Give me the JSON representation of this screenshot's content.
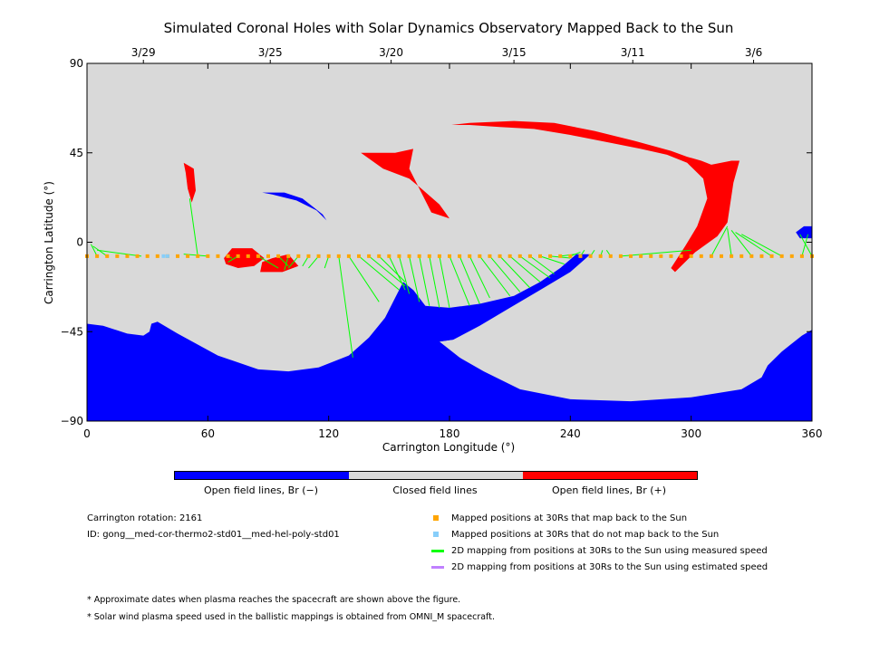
{
  "chart_data": {
    "type": "map",
    "title": "Simulated Coronal Holes with Solar Dynamics Observatory Mapped Back to the Sun",
    "xlabel": "Carrington Longitude (°)",
    "ylabel": "Carrington Latitude (°)",
    "xlim": [
      0,
      360
    ],
    "ylim": [
      -90,
      90
    ],
    "x_ticks": [
      0,
      60,
      120,
      180,
      240,
      300,
      360
    ],
    "y_ticks": [
      -90,
      -45,
      0,
      45,
      90
    ],
    "top_axis_dates": [
      {
        "label": "3/29",
        "lon": 28
      },
      {
        "label": "3/25",
        "lon": 91
      },
      {
        "label": "3/20",
        "lon": 151
      },
      {
        "label": "3/15",
        "lon": 212
      },
      {
        "label": "3/11",
        "lon": 271
      },
      {
        "label": "3/6",
        "lon": 331
      }
    ],
    "colors": {
      "open_neg": "#0000ff",
      "closed": "#d9d9d9",
      "open_pos": "#ff0000",
      "mapped": "#ffa500",
      "unmapped": "#87cefa",
      "measured": "#00ff00",
      "estimated": "#c080ff"
    },
    "colorbar": [
      {
        "label": "Open field lines, Br (−)",
        "color": "#0000ff"
      },
      {
        "label": "Closed field lines",
        "color": "#d9d9d9"
      },
      {
        "label": "Open field lines, Br (+)",
        "color": "#ff0000"
      }
    ],
    "regions": {
      "south_polar_hole": {
        "polarity": "negative",
        "outline": [
          [
            0,
            -90
          ],
          [
            360,
            -90
          ],
          [
            360,
            -44
          ],
          [
            355,
            -47
          ],
          [
            345,
            -55
          ],
          [
            338,
            -62
          ],
          [
            335,
            -68
          ],
          [
            325,
            -74
          ],
          [
            300,
            -78
          ],
          [
            270,
            -80
          ],
          [
            240,
            -79
          ],
          [
            215,
            -74
          ],
          [
            197,
            -65
          ],
          [
            185,
            -58
          ],
          [
            175,
            -50
          ],
          [
            182,
            -49
          ],
          [
            195,
            -42
          ],
          [
            210,
            -33
          ],
          [
            225,
            -24
          ],
          [
            240,
            -15
          ],
          [
            250,
            -6
          ],
          [
            243,
            -6
          ],
          [
            235,
            -13
          ],
          [
            225,
            -20
          ],
          [
            212,
            -27
          ],
          [
            195,
            -31
          ],
          [
            180,
            -33
          ],
          [
            168,
            -32
          ],
          [
            162,
            -24
          ],
          [
            157,
            -20
          ],
          [
            152,
            -30
          ],
          [
            148,
            -38
          ],
          [
            140,
            -48
          ],
          [
            130,
            -57
          ],
          [
            115,
            -63
          ],
          [
            100,
            -65
          ],
          [
            85,
            -64
          ],
          [
            65,
            -57
          ],
          [
            45,
            -46
          ],
          [
            35,
            -40
          ],
          [
            32,
            -41
          ],
          [
            31,
            -45
          ],
          [
            28,
            -47
          ],
          [
            20,
            -46
          ],
          [
            8,
            -42
          ],
          [
            0,
            -41
          ]
        ]
      },
      "southern_channel": {
        "polarity": "negative",
        "outline": [
          [
            175,
            -50
          ],
          [
            165,
            -47
          ],
          [
            160,
            -40
          ],
          [
            158,
            -32
          ],
          [
            159,
            -24
          ],
          [
            162,
            -24
          ],
          [
            168,
            -32
          ],
          [
            178,
            -38
          ],
          [
            182,
            -49
          ]
        ]
      },
      "north_extension": {
        "polarity": "positive",
        "outline": [
          [
            181,
            59
          ],
          [
            190,
            60
          ],
          [
            212,
            61
          ],
          [
            232,
            60
          ],
          [
            252,
            56
          ],
          [
            272,
            51
          ],
          [
            290,
            46
          ],
          [
            298,
            43
          ],
          [
            305,
            41
          ],
          [
            310,
            39
          ],
          [
            320,
            41
          ],
          [
            324,
            41
          ],
          [
            321,
            30
          ],
          [
            318,
            10
          ],
          [
            313,
            3
          ],
          [
            302,
            -5
          ],
          [
            292,
            -15
          ],
          [
            290,
            -13
          ],
          [
            297,
            -2
          ],
          [
            303,
            8
          ],
          [
            308,
            22
          ],
          [
            306,
            32
          ],
          [
            298,
            40
          ],
          [
            288,
            44
          ],
          [
            275,
            47
          ],
          [
            260,
            50
          ],
          [
            240,
            54
          ],
          [
            222,
            57
          ],
          [
            205,
            58
          ],
          [
            190,
            59
          ]
        ]
      },
      "diagonal_patch": {
        "polarity": "positive",
        "outline": [
          [
            136,
            45
          ],
          [
            153,
            45
          ],
          [
            162,
            47
          ],
          [
            160,
            37
          ],
          [
            165,
            27
          ],
          [
            171,
            15
          ],
          [
            180,
            12
          ],
          [
            175,
            19
          ],
          [
            166,
            27
          ],
          [
            160,
            32
          ],
          [
            147,
            37
          ]
        ]
      },
      "small_north_patch": {
        "polarity": "positive",
        "outline": [
          [
            48,
            40
          ],
          [
            53,
            37
          ],
          [
            54,
            26
          ],
          [
            52,
            20
          ],
          [
            50,
            27
          ],
          [
            49,
            35
          ]
        ]
      },
      "low_patch_1": {
        "polarity": "positive",
        "outline": [
          [
            68,
            -8
          ],
          [
            72,
            -3
          ],
          [
            82,
            -3
          ],
          [
            88,
            -8
          ],
          [
            83,
            -12
          ],
          [
            75,
            -13
          ],
          [
            69,
            -11
          ]
        ]
      },
      "low_patch_2": {
        "polarity": "positive",
        "outline": [
          [
            86,
            -15
          ],
          [
            97,
            -15
          ],
          [
            105,
            -12
          ],
          [
            100,
            -6
          ],
          [
            92,
            -8
          ],
          [
            87,
            -10
          ]
        ]
      },
      "blue_arc": {
        "polarity": "negative",
        "outline": [
          [
            87,
            25
          ],
          [
            98,
            25
          ],
          [
            107,
            22
          ],
          [
            117,
            14
          ],
          [
            119,
            11
          ],
          [
            114,
            16
          ],
          [
            104,
            21
          ],
          [
            92,
            24
          ]
        ]
      },
      "east_blob": {
        "polarity": "negative",
        "outline": [
          [
            352,
            5
          ],
          [
            356,
            8
          ],
          [
            360,
            8
          ],
          [
            360,
            2
          ],
          [
            354,
            2
          ]
        ]
      }
    },
    "mapped_points": {
      "y": -7,
      "x": [
        0,
        5,
        10,
        15,
        20,
        25,
        30,
        35,
        40,
        45,
        50,
        55,
        60,
        65,
        70,
        75,
        80,
        85,
        90,
        95,
        100,
        105,
        110,
        115,
        120,
        125,
        130,
        135,
        140,
        145,
        150,
        155,
        160,
        165,
        170,
        175,
        180,
        185,
        190,
        195,
        200,
        205,
        210,
        215,
        220,
        225,
        230,
        235,
        240,
        245,
        250,
        255,
        260,
        265,
        270,
        275,
        280,
        285,
        290,
        295,
        300,
        305,
        310,
        315,
        320,
        325,
        330,
        335,
        340,
        345,
        350,
        355,
        360
      ]
    },
    "unmapped_points": {
      "y": -7,
      "x": [
        38,
        40
      ]
    },
    "measured_mapping_lines": [
      [
        0,
        -7,
        0,
        3
      ],
      [
        5,
        -7,
        2,
        -1
      ],
      [
        10,
        -7,
        3,
        -2
      ],
      [
        27,
        -7,
        5,
        -4
      ],
      [
        55,
        -7,
        51,
        22
      ],
      [
        60,
        -7,
        48,
        -6
      ],
      [
        70,
        -7,
        72,
        -8
      ],
      [
        75,
        -7,
        70,
        -10
      ],
      [
        85,
        -7,
        95,
        -13
      ],
      [
        95,
        -7,
        100,
        -12
      ],
      [
        100,
        -7,
        98,
        -14
      ],
      [
        105,
        -7,
        100,
        -13
      ],
      [
        110,
        -7,
        107,
        -12
      ],
      [
        115,
        -7,
        110,
        -13
      ],
      [
        120,
        -7,
        118,
        -13
      ],
      [
        125,
        -7,
        132,
        -58
      ],
      [
        130,
        -7,
        145,
        -30
      ],
      [
        135,
        -7,
        155,
        -24
      ],
      [
        140,
        -7,
        158,
        -22
      ],
      [
        145,
        -7,
        158,
        -20
      ],
      [
        150,
        -7,
        158,
        -24
      ],
      [
        155,
        -7,
        160,
        -26
      ],
      [
        160,
        -7,
        165,
        -30
      ],
      [
        165,
        -7,
        170,
        -32
      ],
      [
        170,
        -7,
        175,
        -33
      ],
      [
        175,
        -7,
        180,
        -33
      ],
      [
        180,
        -7,
        190,
        -32
      ],
      [
        185,
        -7,
        195,
        -31
      ],
      [
        190,
        -7,
        200,
        -28
      ],
      [
        195,
        -7,
        210,
        -27
      ],
      [
        200,
        -7,
        215,
        -25
      ],
      [
        205,
        -7,
        220,
        -23
      ],
      [
        210,
        -7,
        225,
        -20
      ],
      [
        215,
        -7,
        230,
        -18
      ],
      [
        220,
        -7,
        232,
        -16
      ],
      [
        225,
        -7,
        237,
        -11
      ],
      [
        230,
        -7,
        240,
        -8
      ],
      [
        235,
        -7,
        243,
        -6
      ],
      [
        240,
        -7,
        245,
        -5
      ],
      [
        245,
        -7,
        247,
        -4
      ],
      [
        250,
        -7,
        252,
        -4
      ],
      [
        255,
        -7,
        256,
        -4
      ],
      [
        260,
        -7,
        258,
        -4
      ],
      [
        265,
        -7,
        300,
        -4
      ],
      [
        310,
        -7,
        318,
        8
      ],
      [
        320,
        -7,
        318,
        7
      ],
      [
        330,
        -7,
        320,
        6
      ],
      [
        340,
        -7,
        322,
        5
      ],
      [
        345,
        -7,
        325,
        4
      ],
      [
        355,
        -7,
        358,
        4
      ],
      [
        360,
        -7,
        354,
        4
      ]
    ],
    "estimated_mapping_lines": []
  },
  "legend": [
    {
      "label": "Mapped positions at 30Rs that map back to the Sun",
      "color": "#ffa500",
      "kind": "square"
    },
    {
      "label": "Mapped positions at 30Rs that do not map back to the Sun",
      "color": "#87cefa",
      "kind": "square"
    },
    {
      "label": "2D mapping from positions at 30Rs to the Sun using measured speed",
      "color": "#00ff00",
      "kind": "line"
    },
    {
      "label": "2D mapping from positions at 30Rs to the Sun using estimated speed",
      "color": "#c080ff",
      "kind": "line"
    }
  ],
  "info": {
    "rotation": "Carrington rotation: 2161",
    "id": "ID: gong__med-cor-thermo2-std01__med-hel-poly-std01"
  },
  "footnotes": [
    "* Approximate dates when plasma reaches the spacecraft are shown above the figure.",
    "* Solar wind plasma speed used in the ballistic mappings is obtained from OMNI_M spacecraft."
  ]
}
